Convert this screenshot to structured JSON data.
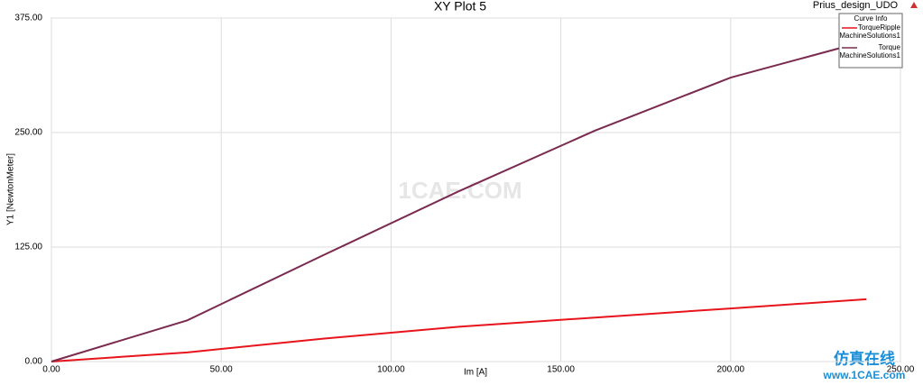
{
  "chart_data": {
    "type": "line",
    "title": "XY Plot 5",
    "subtitle": "Prius_design_UDO",
    "x_label": "Im [A]",
    "y_label": "Y1 [NewtonMeter]",
    "legend_title": "Curve Info",
    "legend": "top-right",
    "grid": true,
    "x": [
      0,
      40,
      80,
      120,
      160,
      200,
      240
    ],
    "series": [
      {
        "name": "TorqueRipple",
        "source": "MachineSolutions1",
        "color": "#e8141c",
        "values": [
          0,
          10,
          25,
          38,
          48,
          58,
          68
        ]
      },
      {
        "name": "Torque",
        "source": "MachineSolutions1",
        "color": "#7a2a4e",
        "values": [
          0,
          45,
          116,
          186,
          252,
          310,
          350
        ]
      }
    ],
    "xlim": [
      0,
      250
    ],
    "ylim": [
      0,
      375
    ],
    "xticks": [
      {
        "value": 0,
        "label": "0.00"
      },
      {
        "value": 50,
        "label": "50.00"
      },
      {
        "value": 100,
        "label": "100.00"
      },
      {
        "value": 150,
        "label": "150.00"
      },
      {
        "value": 200,
        "label": "200.00"
      },
      {
        "value": 250,
        "label": "250.00"
      }
    ],
    "yticks": [
      {
        "value": 0,
        "label": "0.00"
      },
      {
        "value": 125,
        "label": "125.00"
      },
      {
        "value": 250,
        "label": "250.00"
      },
      {
        "value": 375,
        "label": "375.00"
      }
    ],
    "watermarks": [
      "1CAE.COM",
      "仿真在线",
      "www.1CAE.com"
    ]
  }
}
